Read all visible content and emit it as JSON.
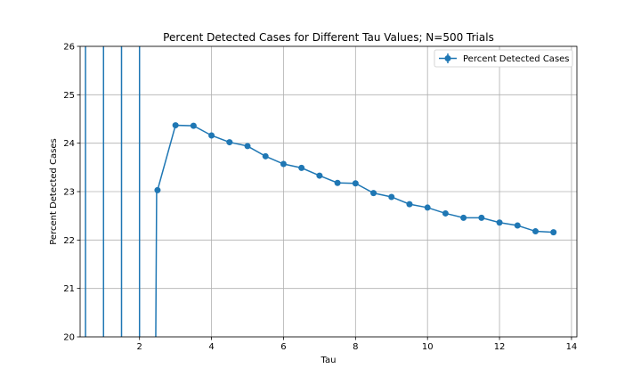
{
  "chart_data": {
    "type": "line",
    "title": "Percent Detected Cases for Different Tau Values; N=500 Trials",
    "xlabel": "Tau",
    "ylabel": "Percent Detected Cases",
    "xlim": [
      0.35,
      14.15
    ],
    "ylim": [
      20,
      26
    ],
    "xticks": [
      2,
      4,
      6,
      8,
      10,
      12,
      14
    ],
    "yticks": [
      20,
      21,
      22,
      23,
      24,
      25,
      26
    ],
    "grid": true,
    "legend_position": "top-right",
    "color": "#1f77b4",
    "series": [
      {
        "name": "Percent Detected Cases",
        "marker": "circle",
        "x": [
          0.5,
          1.0,
          1.5,
          2.0,
          2.5,
          3.0,
          3.5,
          4.0,
          4.5,
          5.0,
          5.5,
          6.0,
          6.5,
          7.0,
          7.5,
          8.0,
          8.5,
          9.0,
          9.5,
          10.0,
          10.5,
          11.0,
          11.5,
          12.0,
          12.5,
          13.0,
          13.5
        ],
        "y": [
          null,
          null,
          null,
          null,
          23.03,
          24.37,
          24.36,
          24.16,
          24.02,
          23.94,
          23.73,
          23.57,
          23.49,
          23.33,
          23.18,
          23.17,
          22.97,
          22.89,
          22.74,
          22.67,
          22.55,
          22.46,
          22.46,
          22.36,
          22.3,
          22.18,
          22.16
        ]
      }
    ]
  }
}
